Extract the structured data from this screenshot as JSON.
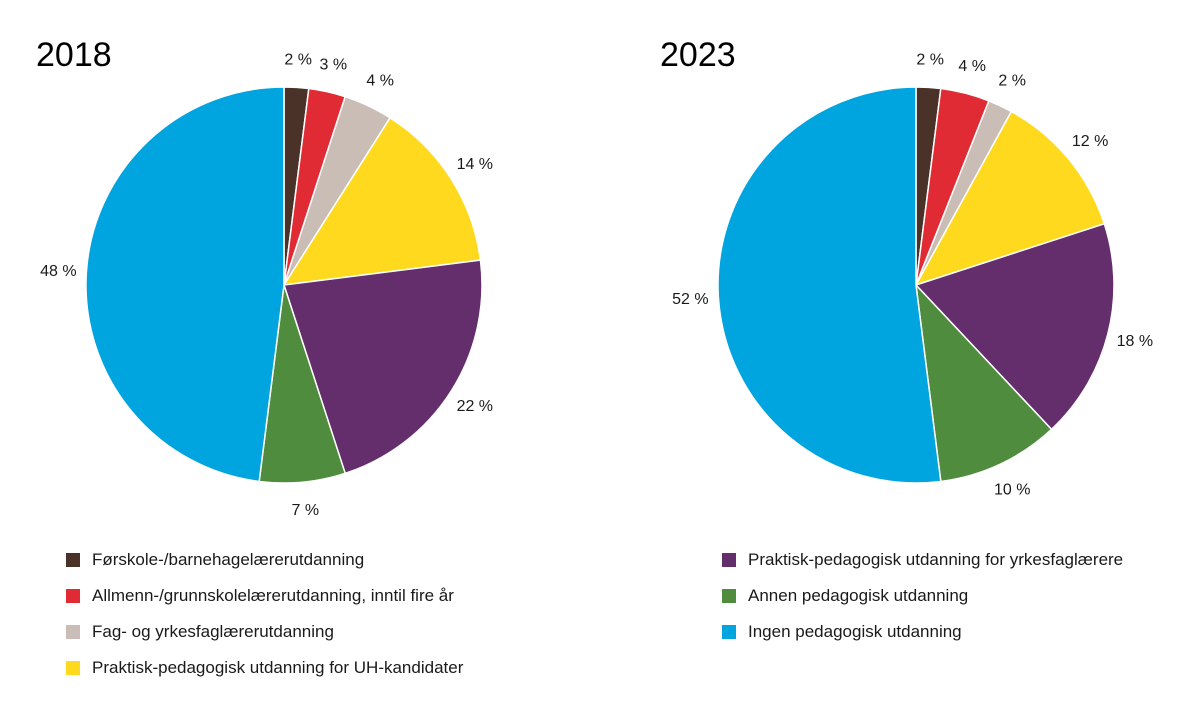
{
  "chart_data": [
    {
      "type": "pie",
      "title": "2018",
      "slices": [
        {
          "category": "Førskole-/barnehagelærerutdanning",
          "value": 2,
          "label": "2 %"
        },
        {
          "category": "Allmenn-/grunnskolelærerutdanning, inntil fire år",
          "value": 3,
          "label": "3 %"
        },
        {
          "category": "Fag- og yrkesfaglærerutdanning",
          "value": 4,
          "label": "4 %"
        },
        {
          "category": "Praktisk-pedagogisk utdanning for UH-kandidater",
          "value": 14,
          "label": "14 %"
        },
        {
          "category": "Praktisk-pedagogisk utdanning for yrkesfaglærere",
          "value": 22,
          "label": "22 %"
        },
        {
          "category": "Annen pedagogisk utdanning",
          "value": 7,
          "label": "7 %"
        },
        {
          "category": "Ingen pedagogisk utdanning",
          "value": 48,
          "label": "48 %"
        }
      ]
    },
    {
      "type": "pie",
      "title": "2023",
      "slices": [
        {
          "category": "Førskole-/barnehagelærerutdanning",
          "value": 2,
          "label": "2 %"
        },
        {
          "category": "Allmenn-/grunnskolelærerutdanning, inntil fire år",
          "value": 4,
          "label": "4 %"
        },
        {
          "category": "Fag- og yrkesfaglærerutdanning",
          "value": 2,
          "label": "2 %"
        },
        {
          "category": "Praktisk-pedagogisk utdanning for UH-kandidater",
          "value": 12,
          "label": "12 %"
        },
        {
          "category": "Praktisk-pedagogisk utdanning for yrkesfaglærere",
          "value": 18,
          "label": "18 %"
        },
        {
          "category": "Annen pedagogisk utdanning",
          "value": 10,
          "label": "10 %"
        },
        {
          "category": "Ingen pedagogisk utdanning",
          "value": 52,
          "label": "52 %"
        }
      ]
    }
  ],
  "legend": [
    {
      "label": "Førskole-/barnehagelærerutdanning",
      "color": "#4a3228"
    },
    {
      "label": "Allmenn-/grunnskolelærerutdanning, inntil fire år",
      "color": "#e02b35"
    },
    {
      "label": "Fag- og yrkesfaglærerutdanning",
      "color": "#cabdb5"
    },
    {
      "label": "Praktisk-pedagogisk utdanning for UH-kandidater",
      "color": "#ffd91e"
    },
    {
      "label": "Praktisk-pedagogisk utdanning for yrkesfaglærere",
      "color": "#642d6b"
    },
    {
      "label": "Annen pedagogisk utdanning",
      "color": "#4f8c3e"
    },
    {
      "label": "Ingen pedagogisk utdanning",
      "color": "#00a4de"
    }
  ]
}
